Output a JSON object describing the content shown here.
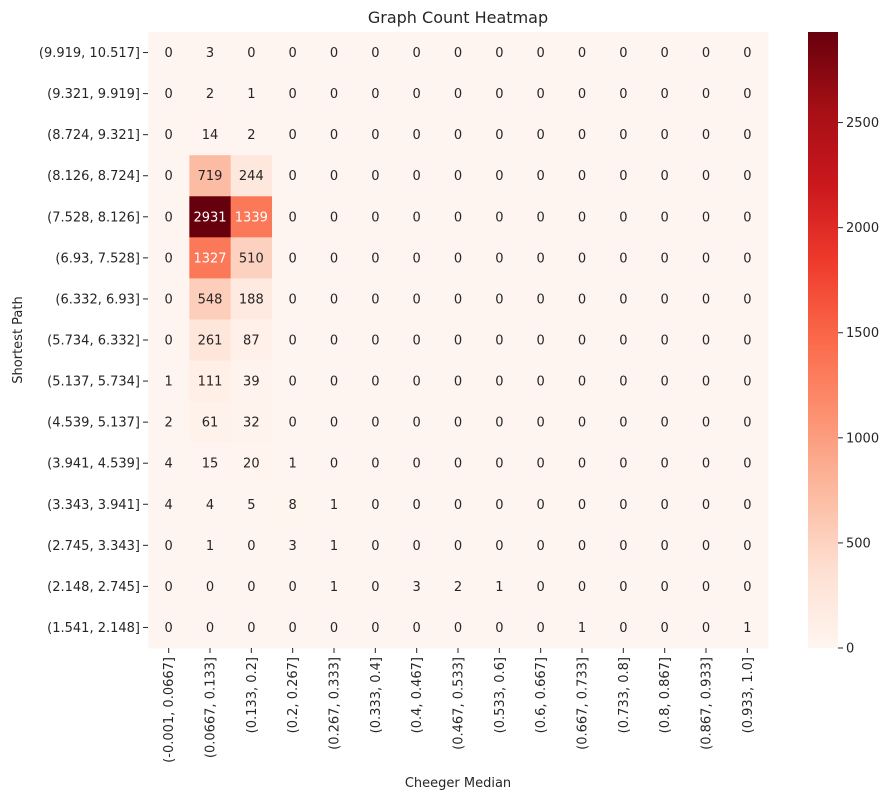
{
  "chart_data": {
    "type": "heatmap",
    "title": "Graph Count Heatmap",
    "xlabel": "Cheeger Median",
    "ylabel": "Shortest Path",
    "x_categories": [
      "(-0.001, 0.0667]",
      "(0.0667, 0.133]",
      "(0.133, 0.2]",
      "(0.2, 0.267]",
      "(0.267, 0.333]",
      "(0.333, 0.4]",
      "(0.4, 0.467]",
      "(0.467, 0.533]",
      "(0.533, 0.6]",
      "(0.6, 0.667]",
      "(0.667, 0.733]",
      "(0.733, 0.8]",
      "(0.8, 0.867]",
      "(0.867, 0.933]",
      "(0.933, 1.0]"
    ],
    "y_categories": [
      "(9.919, 10.517]",
      "(9.321, 9.919]",
      "(8.724, 9.321]",
      "(8.126, 8.724]",
      "(7.528, 8.126]",
      "(6.93, 7.528]",
      "(6.332, 6.93]",
      "(5.734, 6.332]",
      "(5.137, 5.734]",
      "(4.539, 5.137]",
      "(3.941, 4.539]",
      "(3.343, 3.941]",
      "(2.745, 3.343]",
      "(2.148, 2.745]",
      "(1.541, 2.148]"
    ],
    "values": [
      [
        0,
        3,
        0,
        0,
        0,
        0,
        0,
        0,
        0,
        0,
        0,
        0,
        0,
        0,
        0
      ],
      [
        0,
        2,
        1,
        0,
        0,
        0,
        0,
        0,
        0,
        0,
        0,
        0,
        0,
        0,
        0
      ],
      [
        0,
        14,
        2,
        0,
        0,
        0,
        0,
        0,
        0,
        0,
        0,
        0,
        0,
        0,
        0
      ],
      [
        0,
        719,
        244,
        0,
        0,
        0,
        0,
        0,
        0,
        0,
        0,
        0,
        0,
        0,
        0
      ],
      [
        0,
        2931,
        1339,
        0,
        0,
        0,
        0,
        0,
        0,
        0,
        0,
        0,
        0,
        0,
        0
      ],
      [
        0,
        1327,
        510,
        0,
        0,
        0,
        0,
        0,
        0,
        0,
        0,
        0,
        0,
        0,
        0
      ],
      [
        0,
        548,
        188,
        0,
        0,
        0,
        0,
        0,
        0,
        0,
        0,
        0,
        0,
        0,
        0
      ],
      [
        0,
        261,
        87,
        0,
        0,
        0,
        0,
        0,
        0,
        0,
        0,
        0,
        0,
        0,
        0
      ],
      [
        1,
        111,
        39,
        0,
        0,
        0,
        0,
        0,
        0,
        0,
        0,
        0,
        0,
        0,
        0
      ],
      [
        2,
        61,
        32,
        0,
        0,
        0,
        0,
        0,
        0,
        0,
        0,
        0,
        0,
        0,
        0
      ],
      [
        4,
        15,
        20,
        1,
        0,
        0,
        0,
        0,
        0,
        0,
        0,
        0,
        0,
        0,
        0
      ],
      [
        4,
        4,
        5,
        8,
        1,
        0,
        0,
        0,
        0,
        0,
        0,
        0,
        0,
        0,
        0
      ],
      [
        0,
        1,
        0,
        3,
        1,
        0,
        0,
        0,
        0,
        0,
        0,
        0,
        0,
        0,
        0
      ],
      [
        0,
        0,
        0,
        0,
        1,
        0,
        3,
        2,
        1,
        0,
        0,
        0,
        0,
        0,
        0
      ],
      [
        0,
        0,
        0,
        0,
        0,
        0,
        0,
        0,
        0,
        0,
        1,
        0,
        0,
        0,
        1
      ]
    ],
    "colormap": "Reds",
    "colorbar": {
      "vmin": 0,
      "vmax": 2931,
      "ticks": [
        0,
        500,
        1000,
        1500,
        2000,
        2500
      ]
    },
    "grid": false
  }
}
